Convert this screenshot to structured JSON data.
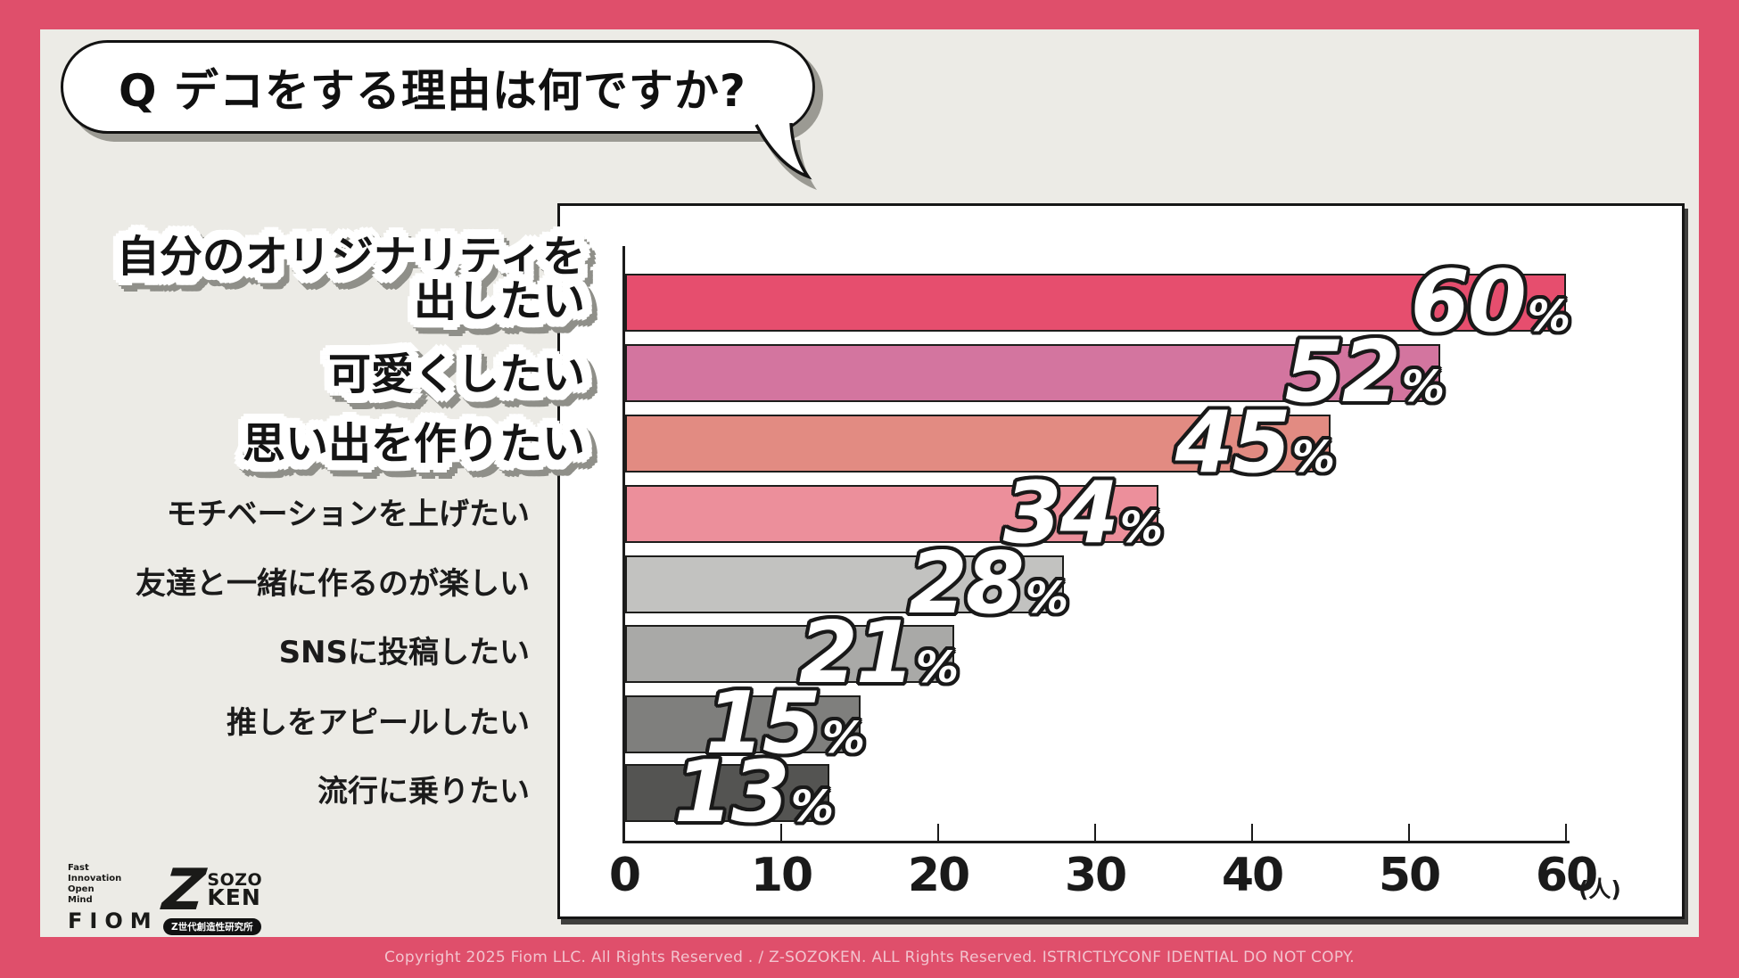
{
  "question": {
    "label": "Q デコをする理由は何ですか?"
  },
  "chart_data": {
    "type": "bar",
    "orientation": "horizontal",
    "title": "デコをする理由は何ですか?",
    "unit": "%",
    "categories": [
      "自分のオリジナリティを出したい",
      "可愛くしたい",
      "思い出を作りたい",
      "モチベーションを上げたい",
      "友達と一緒に作るのが楽しい",
      "SNSに投稿したい",
      "推しをアピールしたい",
      "流行に乗りたい"
    ],
    "values": [
      60,
      52,
      45,
      34,
      28,
      21,
      15,
      13
    ],
    "bar_colors": [
      "#E64E6E",
      "#D3759F",
      "#E28B82",
      "#EC8F9B",
      "#C2C2C0",
      "#A9A9A7",
      "#7F7F7D",
      "#545452"
    ],
    "x_axis": {
      "max": 60,
      "tick_labels": [
        "0",
        "10",
        "20",
        "30",
        "40",
        "50",
        "60"
      ],
      "unit_label": "(人)"
    },
    "legend": "none",
    "grid": "off",
    "highlighted_categories": [
      "自分のオリジナリティを出したい",
      "可愛くしたい",
      "思い出を作りたい"
    ]
  },
  "labels": {
    "sticker_lines": [
      "自分のオリジナリティを",
      "出したい",
      "可愛くしたい",
      "思い出を作りたい"
    ],
    "plain": [
      "モチベーションを上げたい",
      "友達と一緒に作るのが楽しい",
      "SNSに投稿したい",
      "推しをアピールしたい",
      "流行に乗りたい"
    ]
  },
  "logos": {
    "fiom": {
      "tagline": [
        "Fast",
        "Innovation",
        "Open",
        "Mind"
      ],
      "wordmark": "FIOM"
    },
    "sozoken": {
      "z_mark": "Z",
      "name_top": "SOZO",
      "name_bottom": "KEN",
      "badge": "Z世代創造性研究所"
    }
  },
  "footer": {
    "copyright": "Copyright 2025 Fiom LLC. All Rights Reserved . / Z-SOZOKEN. ALL Rights Reserved. ISTRICTLYCONF IDENTIAL DO NOT COPY."
  },
  "colors": {
    "frame": "#DF4F6B",
    "background": "#ECEBE6",
    "bar_border": "#1D1D1B",
    "copyright_text": "#F2C3CE"
  }
}
